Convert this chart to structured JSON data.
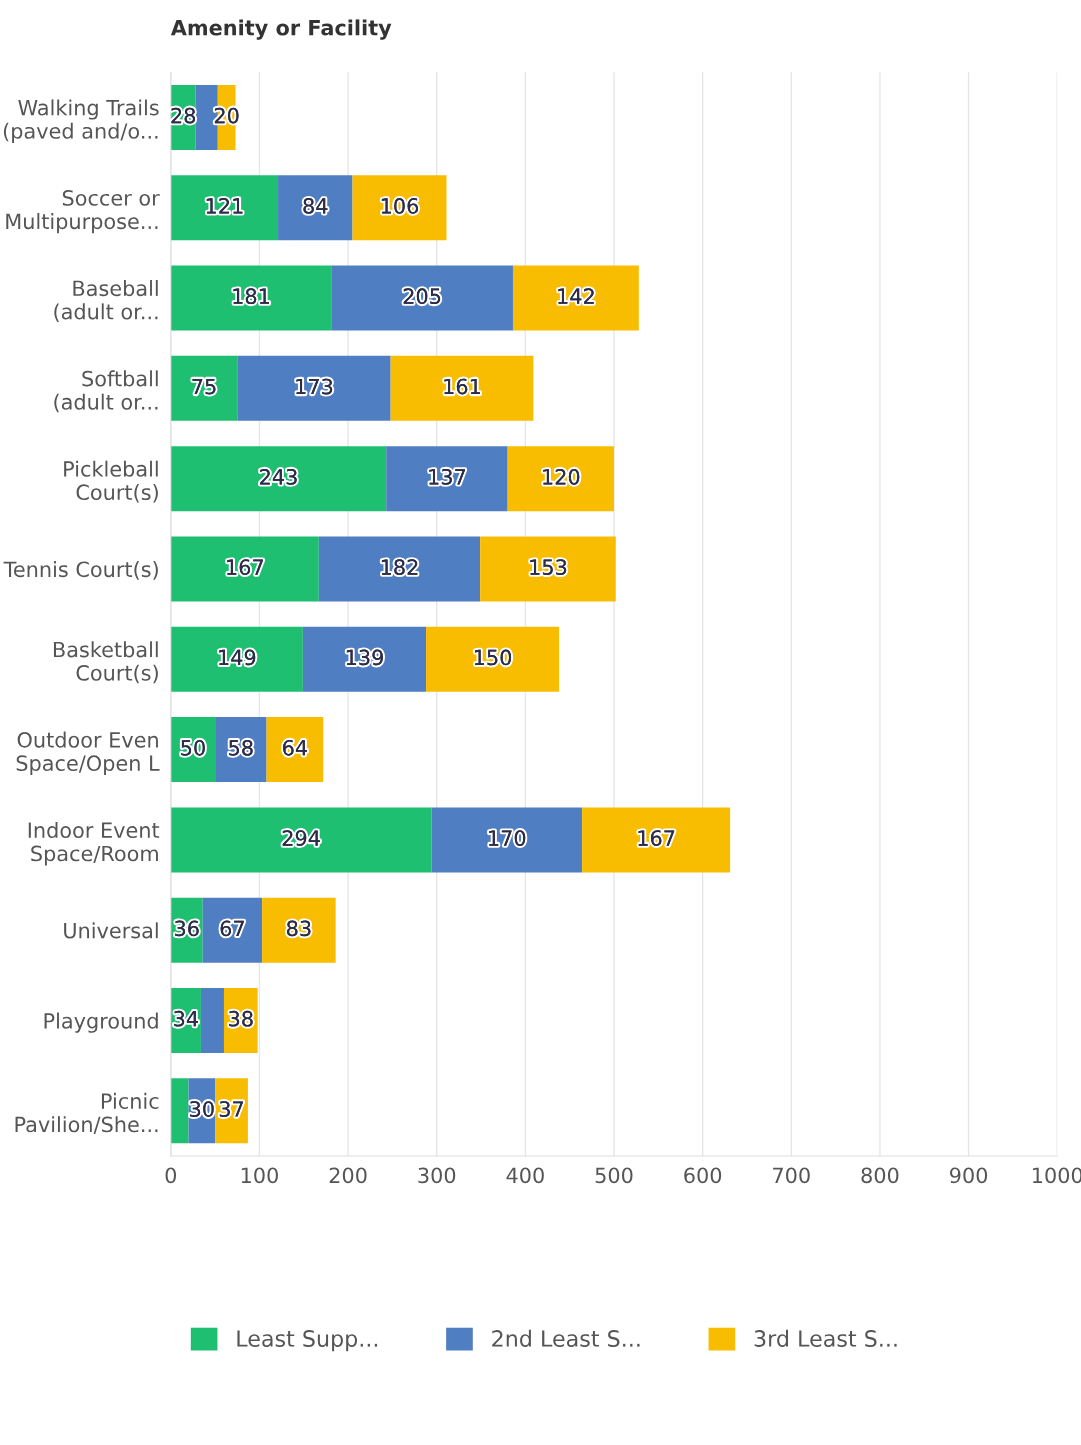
{
  "chart_data": {
    "type": "bar",
    "orientation": "horizontal",
    "stacked": true,
    "ylabel": "Amenity or Facility",
    "categories": [
      "Walking Trails\n(paved and/o...",
      "Soccer or\nMultipurpose...",
      "Baseball\n(adult or...",
      "Softball\n(adult or...",
      "Pickleball\nCourt(s)",
      "Tennis Court(s)",
      "Basketball\nCourt(s)",
      "Outdoor Even\nSpace/Open L",
      "Indoor Event\nSpace/Room",
      "Universal",
      "Playground",
      "Picnic\nPavilion/She..."
    ],
    "series": [
      {
        "name": "Least Supp...",
        "color": "#1fbf72",
        "values": [
          28,
          121,
          181,
          75,
          243,
          167,
          149,
          50,
          294,
          36,
          34,
          20
        ],
        "value_labels": [
          "28",
          "121",
          "181",
          "75",
          "243",
          "167",
          "149",
          "50",
          "294",
          "36",
          "34",
          null
        ]
      },
      {
        "name": "2nd Least S...",
        "color": "#4f7ec2",
        "values": [
          25,
          84,
          205,
          173,
          137,
          182,
          139,
          58,
          170,
          67,
          26,
          30
        ],
        "value_labels": [
          null,
          "84",
          "205",
          "173",
          "137",
          "182",
          "139",
          "58",
          "170",
          "67",
          null,
          "30"
        ]
      },
      {
        "name": "3rd Least S...",
        "color": "#f8bd00",
        "values": [
          20,
          106,
          142,
          161,
          120,
          153,
          150,
          64,
          167,
          83,
          38,
          37
        ],
        "value_labels": [
          "20",
          "106",
          "142",
          "161",
          "120",
          "153",
          "150",
          "64",
          "167",
          "83",
          "38",
          "37"
        ]
      }
    ],
    "xlim": [
      0,
      1000
    ],
    "xticks": [
      0,
      100,
      200,
      300,
      400,
      500,
      600,
      700,
      800,
      900,
      1000
    ],
    "grid": "x",
    "legend": "bottom"
  }
}
